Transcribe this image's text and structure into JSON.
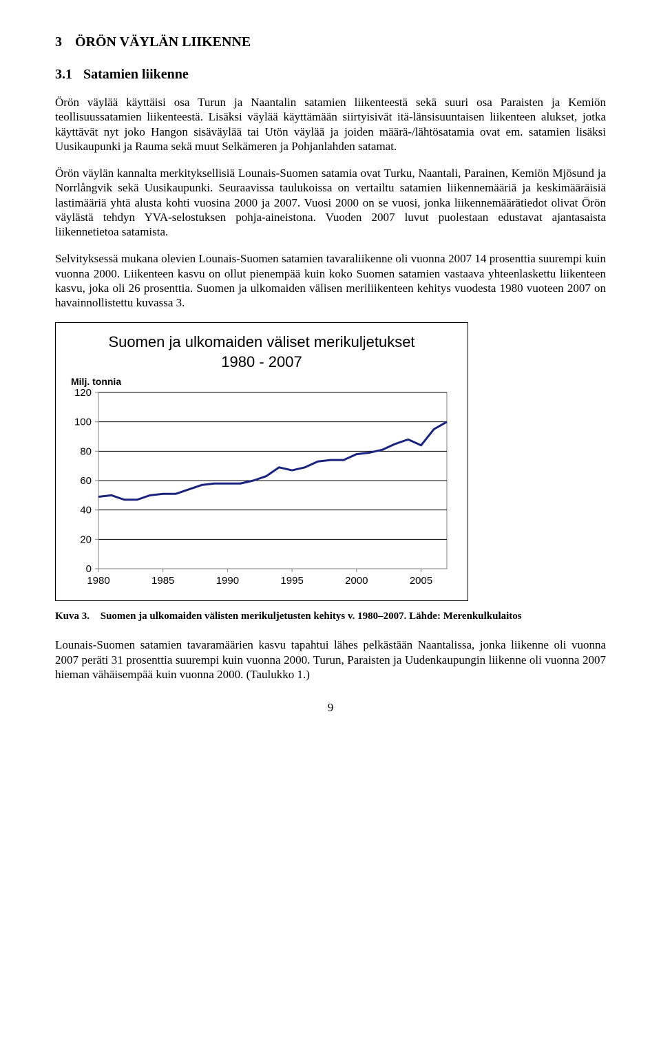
{
  "heading1": {
    "num": "3",
    "text": "ÖRÖN VÄYLÄN LIIKENNE"
  },
  "heading2": {
    "num": "3.1",
    "text": "Satamien liikenne"
  },
  "paragraphs": {
    "p1": "Örön väylää käyttäisi osa Turun ja Naantalin satamien liikenteestä sekä suuri osa Paraisten ja Kemiön teollisuussatamien liikenteestä. Lisäksi väylää käyttämään siirtyisivät itä-länsisuuntaisen liikenteen alukset, jotka käyttävät nyt joko Hangon sisäväylää tai Utön väylää ja joiden määrä-/lähtösatamia ovat em. satamien lisäksi Uusikaupunki ja Rauma sekä muut Selkämeren ja Pohjanlahden satamat.",
    "p2": "Örön väylän kannalta merkityksellisiä Lounais-Suomen satamia ovat Turku, Naantali, Parainen, Kemiön Mjösund ja Norrlångvik sekä Uusikaupunki. Seuraavissa taulukoissa on vertailtu satamien liikennemääriä ja keskimääräisiä lastimääriä yhtä alusta kohti vuosina 2000 ja 2007. Vuosi 2000 on se vuosi, jonka liikennemäärätiedot olivat Örön väylästä tehdyn YVA-selostuksen pohja-aineistona. Vuoden 2007 luvut puolestaan edustavat ajantasaista liikennetietoa satamista.",
    "p3": "Selvityksessä mukana olevien Lounais-Suomen satamien tavaraliikenne oli vuonna 2007 14 prosenttia suurempi kuin vuonna 2000. Liikenteen kasvu on ollut pienempää kuin koko Suomen satamien vastaava yhteenlaskettu liikenteen kasvu, joka oli 26 prosenttia. Suomen ja ulkomaiden välisen meriliikenteen kehitys vuodesta 1980 vuoteen 2007 on havainnollistettu kuvassa 3.",
    "p4": "Lounais-Suomen satamien tavaramäärien kasvu tapahtui lähes pelkästään Naantalissa, jonka liikenne oli vuonna 2007 peräti 31 prosenttia suurempi kuin vuonna 2000. Turun, Paraisten ja Uudenkaupungin liikenne oli vuonna 2007 hieman vähäisempää kuin vuonna 2000. (Taulukko 1.)"
  },
  "chart": {
    "type": "line",
    "title_line1": "Suomen ja ulkomaiden väliset merikuljetukset",
    "title_line2": "1980 - 2007",
    "ylabel": "Milj. tonnia",
    "title_fontsize": 22,
    "label_fontsize": 14,
    "tick_fontsize": 15,
    "line_color": "#1a237e",
    "line_width": 3,
    "background_color": "#ffffff",
    "grid_color": "#000000",
    "axis_color": "#808080",
    "inner_border_color": "#808080",
    "xlim": [
      1980,
      2007
    ],
    "ylim": [
      0,
      120
    ],
    "xticks": [
      1980,
      1985,
      1990,
      1995,
      2000,
      2005
    ],
    "yticks": [
      0,
      20,
      40,
      60,
      80,
      100,
      120
    ],
    "years": [
      1980,
      1981,
      1982,
      1983,
      1984,
      1985,
      1986,
      1987,
      1988,
      1989,
      1990,
      1991,
      1992,
      1993,
      1994,
      1995,
      1996,
      1997,
      1998,
      1999,
      2000,
      2001,
      2002,
      2003,
      2004,
      2005,
      2006,
      2007
    ],
    "values": [
      49,
      50,
      47,
      47,
      50,
      51,
      51,
      54,
      57,
      58,
      58,
      58,
      60,
      63,
      69,
      67,
      69,
      73,
      74,
      74,
      78,
      79,
      81,
      85,
      88,
      84,
      95,
      100
    ]
  },
  "caption": {
    "label": "Kuva 3.",
    "text": "Suomen ja ulkomaiden välisten merikuljetusten kehitys v. 1980–2007. Lähde: Merenkulkulaitos"
  },
  "page_number": "9"
}
